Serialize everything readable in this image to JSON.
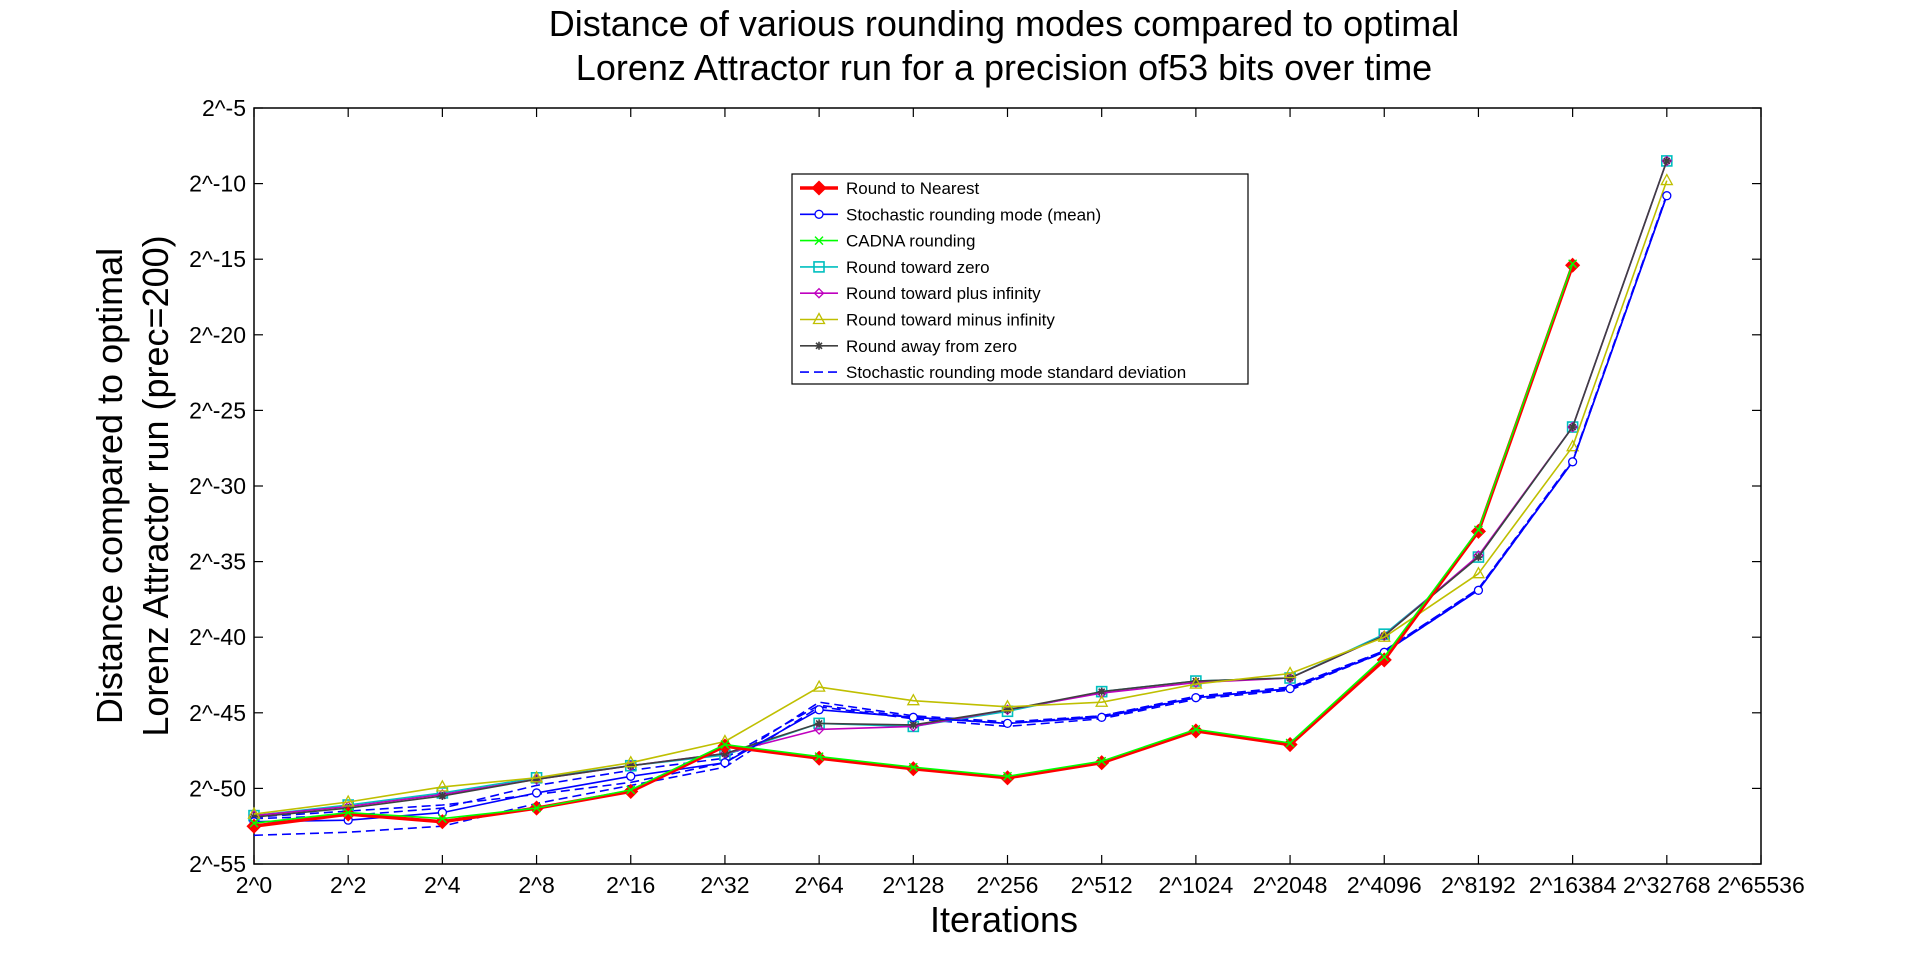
{
  "chart_data": {
    "type": "line",
    "title": [
      "Distance of various rounding modes compared to optimal",
      "Lorenz Attractor run for a precision of53 bits over time"
    ],
    "xlabel": "Iterations",
    "ylabel": [
      "Distance compared to optimal",
      "Lorenz Attractor run (prec=200)"
    ],
    "x_ticks": [
      "2^0",
      "2^2",
      "2^4",
      "2^8",
      "2^16",
      "2^32",
      "2^64",
      "2^128",
      "2^256",
      "2^512",
      "2^1024",
      "2^2048",
      "2^4096",
      "2^8192",
      "2^16384",
      "2^32768",
      "2^65536"
    ],
    "y_ticks": [
      "2^-5",
      "2^-10",
      "2^-15",
      "2^-20",
      "2^-25",
      "2^-30",
      "2^-35",
      "2^-40",
      "2^-45",
      "2^-50",
      "2^-55"
    ],
    "x_scale": "log2 of iterations (ticks evenly spaced)",
    "y_scale": "log2",
    "ylim_exponent": [
      -55,
      -5
    ],
    "grid": false,
    "legend_position": "top-center",
    "series": [
      {
        "name": "Round to Nearest",
        "color": "#ff0000",
        "marker": "diamond",
        "style": "solid-thick",
        "y_exponent": [
          -52.5,
          -51.7,
          -52.2,
          -51.3,
          -50.2,
          -47.2,
          -48.0,
          -48.7,
          -49.3,
          -48.3,
          -46.2,
          -47.1,
          -41.5,
          -33.0,
          -15.4
        ]
      },
      {
        "name": "Stochastic rounding mode (mean)",
        "color": "#0000ff",
        "marker": "circle",
        "style": "solid",
        "y_exponent": [
          -52.2,
          -52.1,
          -51.6,
          -50.3,
          -49.2,
          -48.3,
          -44.8,
          -45.3,
          -45.7,
          -45.3,
          -44.0,
          -43.4,
          -41.0,
          -36.9,
          -28.4,
          -10.8
        ]
      },
      {
        "name": "CADNA rounding",
        "color": "#00ff00",
        "marker": "x",
        "style": "solid",
        "y_exponent": [
          -52.3,
          -51.6,
          -52.0,
          -51.3,
          -50.1,
          -47.1,
          -47.9,
          -48.6,
          -49.2,
          -48.2,
          -46.1,
          -47.0,
          -41.3,
          -32.9,
          -15.3
        ]
      },
      {
        "name": "Round toward zero",
        "color": "#00bfbf",
        "marker": "square",
        "style": "solid",
        "y_exponent": [
          -51.8,
          -51.1,
          -50.3,
          -49.3,
          -48.5,
          -47.8,
          -45.7,
          -45.9,
          -44.9,
          -43.6,
          -42.9,
          -42.7,
          -39.8,
          -34.7,
          -26.1,
          -8.5
        ]
      },
      {
        "name": "Round toward plus infinity",
        "color": "#bf00bf",
        "marker": "diamond-small",
        "style": "solid",
        "y_exponent": [
          -51.8,
          -51.2,
          -50.4,
          -49.4,
          -48.5,
          -47.7,
          -46.1,
          -45.9,
          -44.8,
          -43.7,
          -43.0,
          -42.7,
          -39.9,
          -34.6,
          -26.1,
          -8.5
        ]
      },
      {
        "name": "Round toward minus infinity",
        "color": "#bfbf00",
        "marker": "triangle",
        "style": "solid",
        "y_exponent": [
          -51.7,
          -50.9,
          -49.9,
          -49.3,
          -48.3,
          -46.9,
          -43.3,
          -44.2,
          -44.6,
          -44.3,
          -43.1,
          -42.4,
          -40.0,
          -35.8,
          -27.4,
          -9.8
        ]
      },
      {
        "name": "Round away from zero",
        "color": "#404040",
        "marker": "star",
        "style": "solid",
        "y_exponent": [
          -51.9,
          -51.3,
          -50.5,
          -49.4,
          -48.5,
          -47.7,
          -45.7,
          -45.8,
          -44.8,
          -43.6,
          -42.9,
          -42.7,
          -39.9,
          -34.7,
          -26.1,
          -8.5
        ]
      },
      {
        "name": "Stochastic rounding mode standard deviation",
        "color": "#0000ff",
        "marker": "none",
        "style": "dashed",
        "y_exponent": [
          -53.1,
          -52.9,
          -52.5,
          -51.0,
          -49.8,
          -48.6,
          -44.6,
          -45.4,
          -45.9,
          -45.4,
          -44.1,
          -43.5,
          -41.0,
          -36.9,
          -28.4,
          -10.8
        ]
      },
      {
        "name": "",
        "color": "#0000ff",
        "marker": "none",
        "style": "dashed",
        "y_exponent": [
          -51.9,
          -51.5,
          -51.1,
          -50.4,
          -49.6,
          -48.3,
          -44.3,
          -45.2,
          -45.6,
          -45.2,
          -43.9,
          -43.3,
          -40.9,
          -36.8,
          -28.3,
          -10.7
        ]
      },
      {
        "name": "",
        "color": "#0000ff",
        "marker": "none",
        "style": "dashed",
        "y_exponent": [
          -52.0,
          -51.8,
          -51.3,
          -49.8,
          -48.8,
          -48.0,
          -44.5,
          -45.3,
          -45.7,
          -45.2,
          -44.0,
          -43.4,
          -40.9,
          -36.8,
          -28.4,
          -10.8
        ]
      }
    ]
  }
}
